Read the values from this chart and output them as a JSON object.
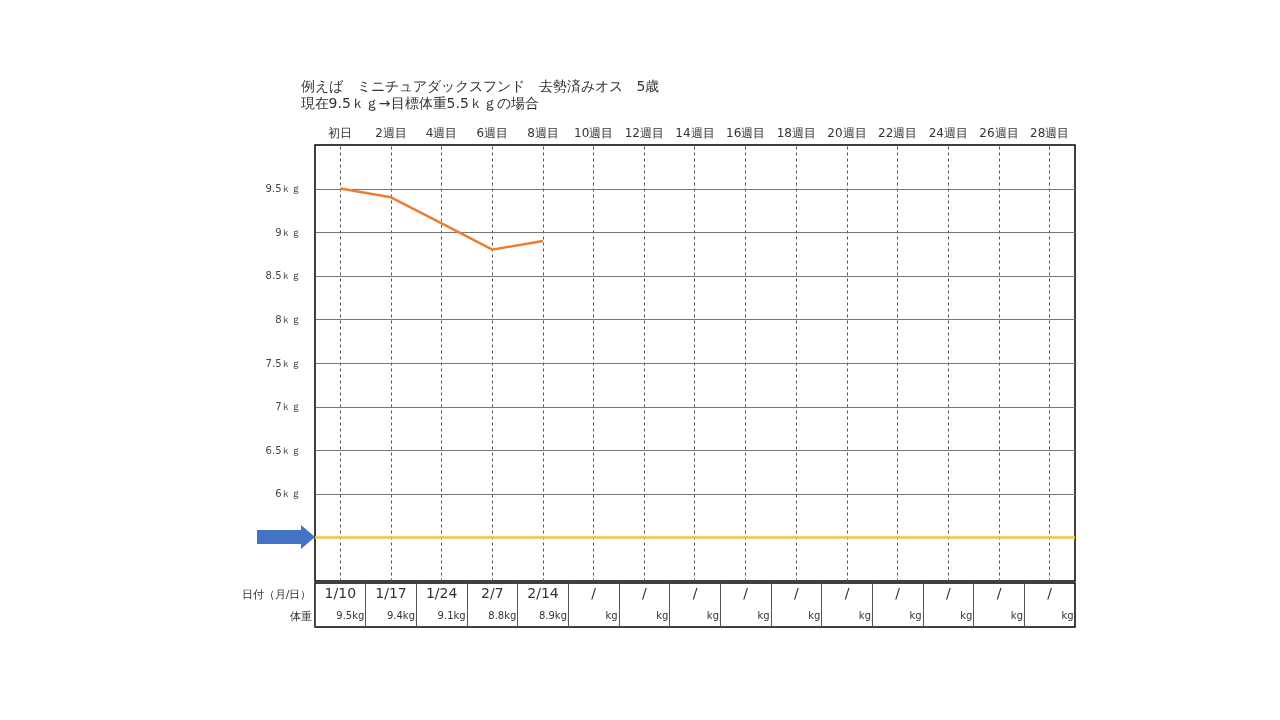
{
  "chart_data": {
    "type": "line",
    "title": "例えば　ミニチュアダックスフンド　去勢済みオス　5歳",
    "subtitle": "現在9.5ｋｇ→目標体重5.5ｋｇの場合",
    "categories": [
      "初日",
      "2週目",
      "4週目",
      "6週目",
      "8週目",
      "10週目",
      "12週目",
      "14週目",
      "16週目",
      "18週目",
      "20週目",
      "22週目",
      "24週目",
      "26週目",
      "28週目"
    ],
    "series": [
      {
        "color": "#ed7d31",
        "values": [
          9.5,
          9.4,
          9.1,
          8.8,
          8.9,
          null,
          null,
          null,
          null,
          null,
          null,
          null,
          null,
          null,
          null
        ],
        "value_labels": [
          "9.5kg",
          "9.4kg",
          "9.1kg",
          "8.8kg",
          "8.9kg",
          "kg",
          "kg",
          "kg",
          "kg",
          "kg",
          "kg",
          "kg",
          "kg",
          "kg",
          "kg"
        ]
      }
    ],
    "ylim": [
      5,
      10
    ],
    "yticks": [
      {
        "value": 6,
        "label": "6ｋｇ"
      },
      {
        "value": 6.5,
        "label": "6.5ｋｇ"
      },
      {
        "value": 7,
        "label": "7ｋｇ"
      },
      {
        "value": 7.5,
        "label": "7.5ｋｇ"
      },
      {
        "value": 8,
        "label": "8ｋｇ"
      },
      {
        "value": 8.5,
        "label": "8.5ｋｇ"
      },
      {
        "value": 9,
        "label": "9ｋｇ"
      },
      {
        "value": 9.5,
        "label": "9.5ｋｇ"
      }
    ],
    "ref_lines": [
      {
        "axis": "y",
        "value": 5.5,
        "color": "#f5c342"
      }
    ],
    "annotations": [
      "日付（月/日）",
      "1/10",
      "1/17",
      "1/24",
      "2/7",
      "2/14",
      "/",
      "/",
      "/",
      "/",
      "/",
      "/",
      "/",
      "/",
      "/",
      "/",
      "体重"
    ],
    "grid": true,
    "marker": "none"
  }
}
